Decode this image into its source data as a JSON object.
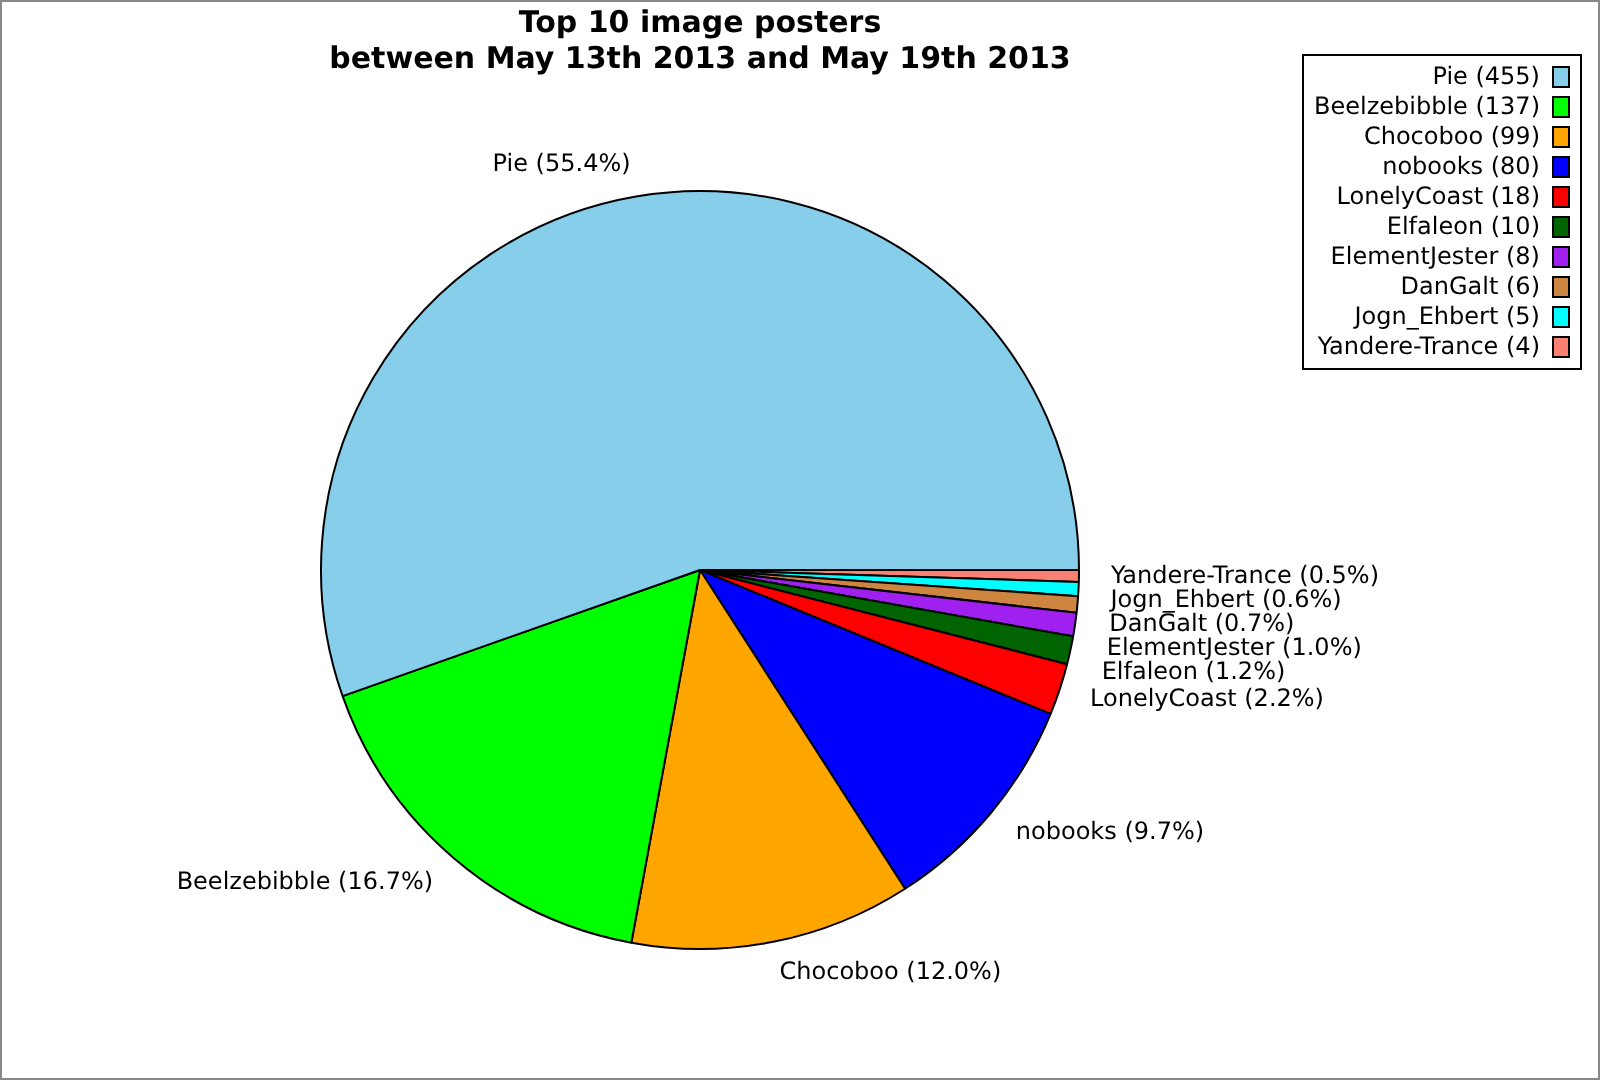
{
  "chart_data": {
    "type": "pie",
    "title": "Top 10 image posters",
    "subtitle": "between May 13th 2013 and May 19th 2013",
    "categories": [
      "Pie (455)",
      "Beelzebibble (137)",
      "Chocoboo (99)",
      "nobooks (80)",
      "LonelyCoast (18)",
      "Elfaleon (10)",
      "ElementJester (8)",
      "DanGalt (6)",
      "Jogn_Ehbert (5)",
      "Yandere-Trance (4)"
    ],
    "values": [
      55.4,
      16.7,
      12.0,
      9.7,
      2.2,
      1.2,
      1.0,
      0.7,
      0.6,
      0.5
    ],
    "colors": [
      "#87ceeb",
      "#00ff00",
      "#ffa500",
      "#0000ff",
      "#ff0000",
      "#006400",
      "#a020f0",
      "#cd853f",
      "#00ffff",
      "#fa8072"
    ],
    "value_labels": [
      "Pie (55.4%)",
      "Beelzebibble (16.7%)",
      "Chocoboo (12.0%)",
      "nobooks (9.7%)",
      "LonelyCoast (2.2%)",
      "Elfaleon (1.2%)",
      "ElementJester (1.0%)",
      "DanGalt (0.7%)",
      "Jogn_Ehbert (0.6%)",
      "Yandere-Trance (0.5%)"
    ],
    "legend": "top right"
  }
}
